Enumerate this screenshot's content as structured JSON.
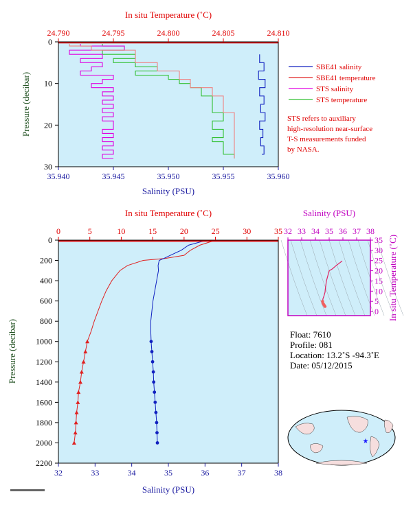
{
  "colors": {
    "sbe_salinity": "#1020c0",
    "sbe_temperature": "#e02020",
    "sts_salinity": "#e000e0",
    "sts_temperature": "#30c030",
    "temp_axis": "#e00000",
    "sal_axis": "#1a1aa0",
    "pres_axis": "#205020",
    "ts_axis": "#c000c0",
    "panel_bg": "#cfeefa",
    "note": "#e00000"
  },
  "top_panel": {
    "top_axis_label": "In situ Temperature (˚C)",
    "top_ticks": [
      "24.790",
      "24.795",
      "24.800",
      "24.805",
      "24.810"
    ],
    "bottom_axis_label": "Salinity (PSU)",
    "bottom_ticks": [
      "35.940",
      "35.945",
      "35.950",
      "35.955",
      "35.960"
    ],
    "left_axis_label": "Pressure (decibar)",
    "left_ticks": [
      "0",
      "10",
      "20",
      "30"
    ],
    "legend": [
      {
        "key": "sbe_salinity",
        "label": "SBE41 salinity"
      },
      {
        "key": "sbe_temperature",
        "label": "SBE41 temperature"
      },
      {
        "key": "sts_salinity",
        "label": "STS salinity"
      },
      {
        "key": "sts_temperature",
        "label": "STS temperature"
      }
    ],
    "note_lines": [
      "STS refers to auxiliary",
      "high-resolution near-surface",
      "T-S measurements funded",
      "by NASA."
    ]
  },
  "main_panel": {
    "top_axis_label": "In situ Temperature (˚C)",
    "top_ticks": [
      "0",
      "5",
      "10",
      "15",
      "20",
      "25",
      "30",
      "35"
    ],
    "bottom_axis_label": "Salinity (PSU)",
    "bottom_ticks": [
      "32",
      "33",
      "34",
      "35",
      "36",
      "37",
      "38"
    ],
    "left_axis_label": "Pressure (decibar)",
    "left_ticks": [
      "0",
      "200",
      "400",
      "600",
      "800",
      "1000",
      "1200",
      "1400",
      "1600",
      "1800",
      "2000",
      "2200"
    ]
  },
  "ts_panel": {
    "top_axis_label": "Salinity (PSU)",
    "top_ticks": [
      "32",
      "33",
      "34",
      "35",
      "36",
      "37",
      "38"
    ],
    "right_axis_label": "In situ Temperature (˚C)",
    "right_ticks": [
      "0",
      "5",
      "10",
      "15",
      "20",
      "25",
      "30",
      "35"
    ]
  },
  "info": {
    "float": "Float:  7610",
    "profile": "Profile:  081",
    "location": "Location:  13.2˚S  -94.3˚E",
    "date": "Date:  05/12/2015"
  },
  "chart_data": [
    {
      "type": "line",
      "xlim_temperature": [
        24.79,
        24.81
      ],
      "xlim_salinity": [
        35.94,
        35.96
      ],
      "ylim_pressure": [
        30,
        0
      ],
      "grid": false,
      "legend_position": "right",
      "sts_temperature": {
        "pressure": [
          0.5,
          1,
          2,
          3,
          4,
          5,
          6,
          7,
          8,
          9,
          10,
          11,
          12,
          13,
          14,
          15,
          16,
          17,
          18,
          19,
          20,
          21,
          22,
          23,
          24,
          25,
          26,
          27,
          28
        ],
        "temperature": [
          24.794,
          24.796,
          24.794,
          24.797,
          24.795,
          24.797,
          24.799,
          24.797,
          24.8,
          24.801,
          24.802,
          24.803,
          24.803,
          24.804,
          24.804,
          24.804,
          24.804,
          24.805,
          24.805,
          24.804,
          24.804,
          24.805,
          24.805,
          24.804,
          24.805,
          24.805,
          24.805,
          24.806,
          24.806
        ]
      },
      "sts_salinity": {
        "pressure": [
          0.5,
          1,
          2,
          3,
          4,
          5,
          6,
          7,
          8,
          9,
          10,
          11,
          12,
          13,
          14,
          15,
          16,
          17,
          18,
          19,
          20,
          21,
          22,
          23,
          24,
          25,
          26,
          27,
          28
        ],
        "salinity": [
          35.942,
          35.946,
          35.941,
          35.944,
          35.942,
          35.944,
          35.943,
          35.942,
          35.945,
          35.944,
          35.943,
          35.945,
          35.944,
          35.945,
          35.944,
          35.945,
          35.944,
          35.945,
          35.944,
          35.945,
          35.945,
          35.944,
          35.945,
          35.944,
          35.945,
          35.944,
          35.945,
          35.944,
          35.945
        ]
      },
      "sbe_salinity": {
        "pressure": [
          3,
          5,
          7,
          9,
          11,
          13,
          15,
          17,
          19,
          21,
          23,
          25,
          27
        ],
        "salinity": [
          35.9583,
          35.9587,
          35.9582,
          35.9588,
          35.9583,
          35.9587,
          35.9584,
          35.9588,
          35.9583,
          35.9586,
          35.9584,
          35.9587,
          35.9585
        ]
      },
      "sbe_temperature": {
        "pressure": [
          0.5,
          1,
          2,
          3,
          5,
          7,
          9,
          11,
          13,
          15,
          17,
          19,
          21,
          23,
          25,
          27,
          28
        ],
        "temperature": [
          24.791,
          24.793,
          24.797,
          24.797,
          24.799,
          24.801,
          24.802,
          24.804,
          24.805,
          24.805,
          24.806,
          24.806,
          24.806,
          24.806,
          24.806,
          24.806,
          24.806
        ]
      }
    },
    {
      "type": "line",
      "xlim_temperature": [
        0,
        35
      ],
      "xlim_salinity": [
        32,
        38
      ],
      "ylim_pressure": [
        2200,
        0
      ],
      "grid": false,
      "temperature": {
        "pressure": [
          0,
          10,
          50,
          100,
          150,
          180,
          200,
          250,
          300,
          400,
          500,
          600,
          700,
          800,
          900,
          1000,
          1100,
          1200,
          1300,
          1400,
          1500,
          1600,
          1700,
          1800,
          1900,
          2000
        ],
        "values": [
          24.8,
          24.5,
          22.5,
          21.0,
          20.0,
          17.0,
          13.5,
          11.0,
          9.8,
          8.5,
          7.6,
          6.9,
          6.3,
          5.7,
          5.2,
          4.6,
          4.3,
          4.0,
          3.7,
          3.5,
          3.2,
          3.1,
          2.9,
          2.8,
          2.7,
          2.5
        ]
      },
      "salinity": {
        "pressure": [
          0,
          10,
          50,
          100,
          150,
          180,
          200,
          250,
          300,
          400,
          500,
          600,
          700,
          800,
          900,
          1000,
          1100,
          1200,
          1300,
          1400,
          1500,
          1600,
          1700,
          1800,
          1900,
          2000
        ],
        "values": [
          35.96,
          35.95,
          35.55,
          35.35,
          35.05,
          34.88,
          34.75,
          34.72,
          34.73,
          34.68,
          34.63,
          34.58,
          34.55,
          34.52,
          34.52,
          34.53,
          34.55,
          34.57,
          34.59,
          34.6,
          34.62,
          34.64,
          34.66,
          34.68,
          34.69,
          34.7
        ]
      }
    },
    {
      "type": "line",
      "xlim_salinity": [
        32,
        38
      ],
      "ylim_temperature": [
        -2,
        35
      ],
      "grid": false,
      "ts_curve": {
        "salinity": [
          35.95,
          35.5,
          35.25,
          35.0,
          34.8,
          34.72,
          34.7,
          34.62,
          34.55,
          34.52,
          34.55,
          34.6,
          34.65,
          34.7
        ],
        "temperature": [
          24.8,
          22.5,
          21.0,
          20.0,
          15.0,
          11.0,
          9.5,
          7.6,
          6.3,
          5.0,
          4.0,
          3.5,
          3.0,
          2.5
        ]
      }
    }
  ]
}
